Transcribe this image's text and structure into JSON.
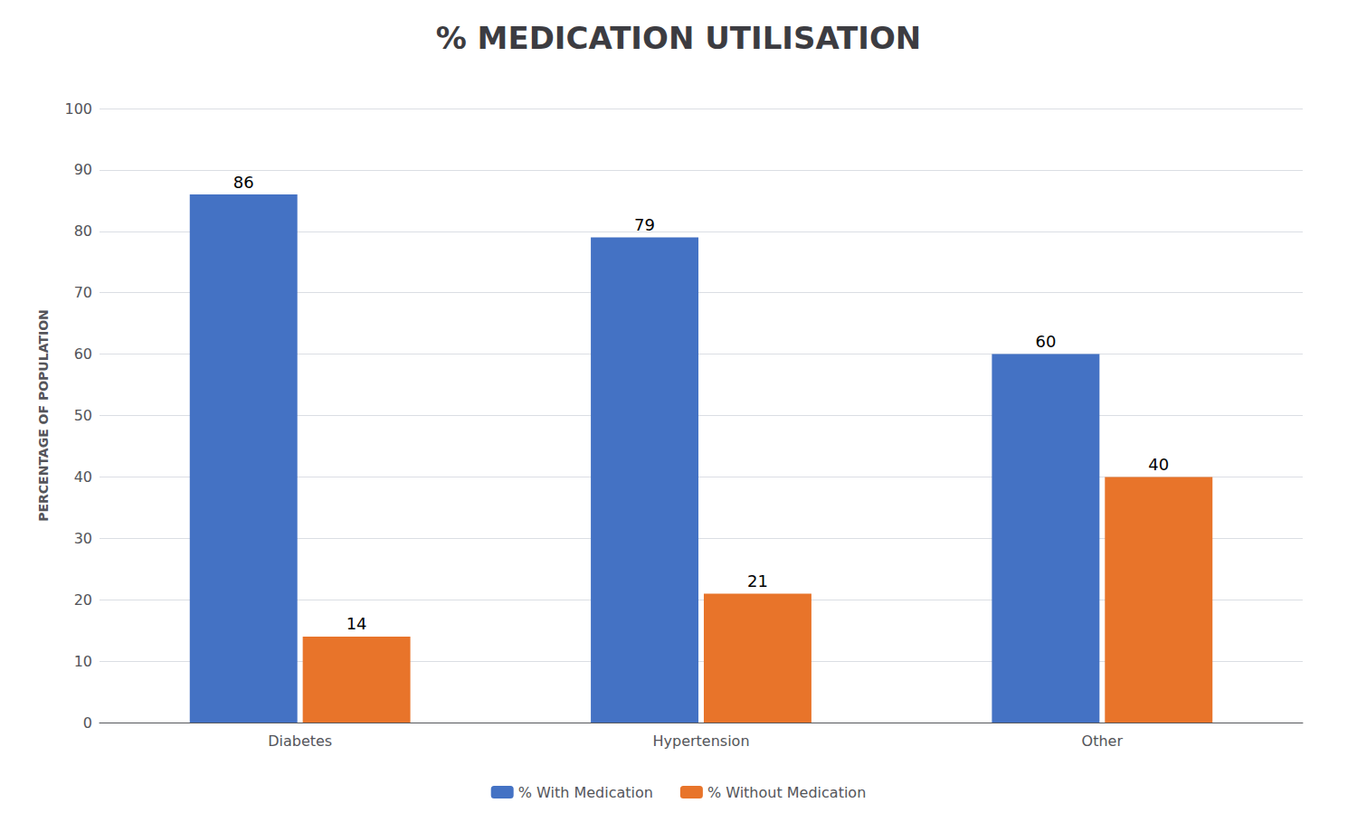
{
  "chart_data": {
    "type": "bar",
    "title": "% MEDICATION UTILISATION",
    "categories": [
      "Diabetes",
      "Hypertension",
      "Other"
    ],
    "series": [
      {
        "name": "% With Medication",
        "color": "#4472C4",
        "values": [
          86,
          79,
          60
        ]
      },
      {
        "name": "% Without Medication",
        "color": "#E8742A",
        "values": [
          14,
          21,
          40
        ]
      }
    ],
    "ylabel": "PERCENTAGE OF POPULATION",
    "ylim": [
      0,
      100
    ],
    "yticks": [
      0,
      10,
      20,
      30,
      40,
      50,
      60,
      70,
      80,
      90,
      100
    ],
    "grid": true,
    "legend": "bottom",
    "data_labels": true
  }
}
